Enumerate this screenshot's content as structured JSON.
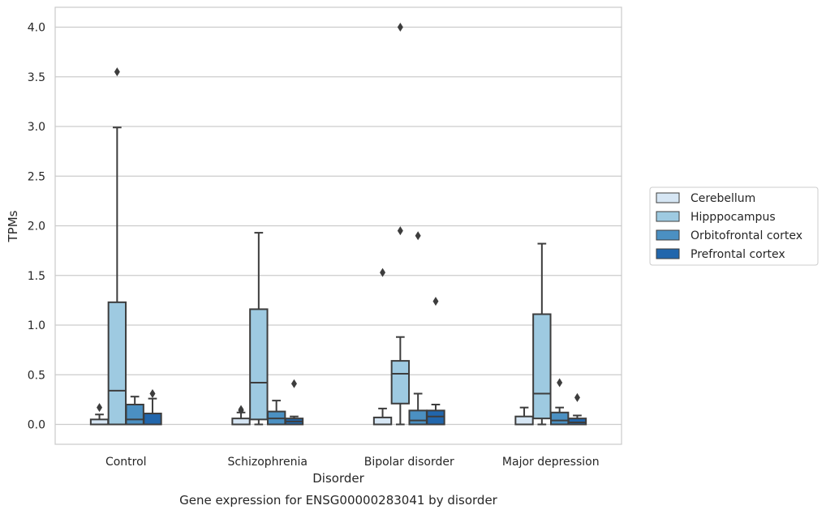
{
  "chart_data": {
    "type": "boxplot",
    "caption": "Gene expression for ENSG00000283041 by disorder",
    "xlabel": "Disorder",
    "ylabel": "TPMs",
    "ylim": [
      -0.2,
      4.2
    ],
    "yticks": [
      0.0,
      0.5,
      1.0,
      1.5,
      2.0,
      2.5,
      3.0,
      3.5,
      4.0
    ],
    "ytick_labels": [
      "0.0",
      "0.5",
      "1.0",
      "1.5",
      "2.0",
      "2.5",
      "3.0",
      "3.5",
      "4.0"
    ],
    "grid": "horizontal",
    "legend_position": "right",
    "categories": [
      "Control",
      "Schizophrenia",
      "Bipolar disorder",
      "Major depression"
    ],
    "series": [
      {
        "name": "Cerebellum",
        "color": "#d6e6f4",
        "boxes": [
          {
            "whisker_low": 0.0,
            "q1": 0.0,
            "median": 0.0,
            "q3": 0.05,
            "whisker_high": 0.1,
            "outliers": [
              0.17
            ]
          },
          {
            "whisker_low": 0.0,
            "q1": 0.0,
            "median": 0.0,
            "q3": 0.06,
            "whisker_high": 0.12,
            "outliers": [
              0.15,
              0.14
            ]
          },
          {
            "whisker_low": 0.0,
            "q1": 0.0,
            "median": 0.0,
            "q3": 0.07,
            "whisker_high": 0.16,
            "outliers": [
              1.53
            ]
          },
          {
            "whisker_low": 0.0,
            "q1": 0.0,
            "median": 0.0,
            "q3": 0.08,
            "whisker_high": 0.17,
            "outliers": []
          }
        ]
      },
      {
        "name": "Hipppocampus",
        "color": "#9ecae1",
        "boxes": [
          {
            "whisker_low": 0.0,
            "q1": 0.0,
            "median": 0.34,
            "q3": 1.23,
            "whisker_high": 2.99,
            "outliers": [
              3.55
            ]
          },
          {
            "whisker_low": 0.0,
            "q1": 0.05,
            "median": 0.42,
            "q3": 1.16,
            "whisker_high": 1.93,
            "outliers": []
          },
          {
            "whisker_low": 0.0,
            "q1": 0.21,
            "median": 0.51,
            "q3": 0.64,
            "whisker_high": 0.88,
            "outliers": [
              1.95,
              4.0
            ]
          },
          {
            "whisker_low": 0.0,
            "q1": 0.06,
            "median": 0.31,
            "q3": 1.11,
            "whisker_high": 1.82,
            "outliers": []
          }
        ]
      },
      {
        "name": "Orbitofrontal cortex",
        "color": "#4b90c2",
        "boxes": [
          {
            "whisker_low": 0.0,
            "q1": 0.0,
            "median": 0.05,
            "q3": 0.2,
            "whisker_high": 0.28,
            "outliers": []
          },
          {
            "whisker_low": 0.0,
            "q1": 0.0,
            "median": 0.06,
            "q3": 0.13,
            "whisker_high": 0.24,
            "outliers": []
          },
          {
            "whisker_low": 0.0,
            "q1": 0.0,
            "median": 0.04,
            "q3": 0.14,
            "whisker_high": 0.31,
            "outliers": [
              1.9
            ]
          },
          {
            "whisker_low": 0.0,
            "q1": 0.0,
            "median": 0.04,
            "q3": 0.12,
            "whisker_high": 0.17,
            "outliers": [
              0.42
            ]
          }
        ]
      },
      {
        "name": "Prefrontal cortex",
        "color": "#2166ac",
        "boxes": [
          {
            "whisker_low": 0.0,
            "q1": 0.0,
            "median": 0.0,
            "q3": 0.11,
            "whisker_high": 0.26,
            "outliers": [
              0.31
            ]
          },
          {
            "whisker_low": 0.0,
            "q1": 0.0,
            "median": 0.03,
            "q3": 0.06,
            "whisker_high": 0.08,
            "outliers": [
              0.41
            ]
          },
          {
            "whisker_low": 0.0,
            "q1": 0.0,
            "median": 0.08,
            "q3": 0.14,
            "whisker_high": 0.2,
            "outliers": [
              1.24
            ]
          },
          {
            "whisker_low": 0.0,
            "q1": 0.0,
            "median": 0.02,
            "q3": 0.06,
            "whisker_high": 0.09,
            "outliers": [
              0.27
            ]
          }
        ]
      }
    ]
  }
}
